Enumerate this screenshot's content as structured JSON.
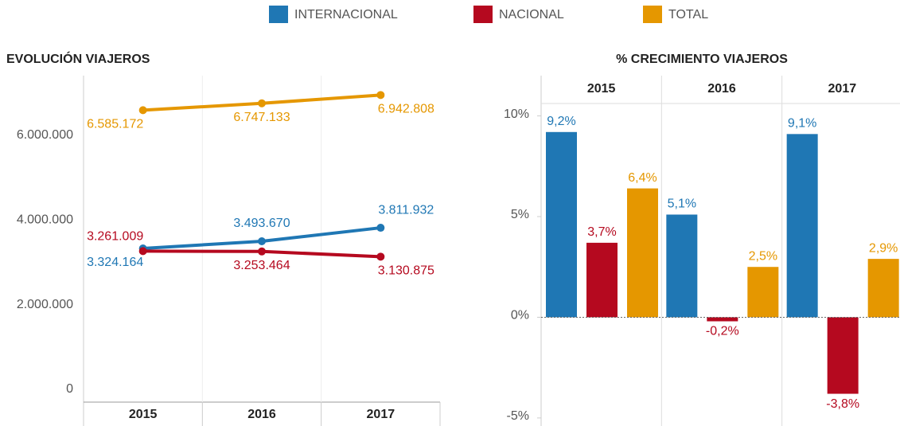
{
  "chart_data": [
    {
      "type": "line",
      "title": "EVOLUCIÓN VIAJEROS",
      "categories": [
        "2015",
        "2016",
        "2017"
      ],
      "series": [
        {
          "name": "INTERNACIONAL",
          "color": "#1f77b4",
          "values": [
            3324164,
            3493670,
            3811932
          ],
          "value_labels": [
            "3.324.164",
            "3.493.670",
            "3.811.932"
          ]
        },
        {
          "name": "NACIONAL",
          "color": "#b5091f",
          "values": [
            3261009,
            3253464,
            3130875
          ],
          "value_labels": [
            "3.261.009",
            "3.253.464",
            "3.130.875"
          ]
        },
        {
          "name": "TOTAL",
          "color": "#e59700",
          "values": [
            6585172,
            6747133,
            6942808
          ],
          "value_labels": [
            "6.585.172",
            "6.747.133",
            "6.942.808"
          ]
        }
      ],
      "ylim": [
        -300000,
        7400000
      ],
      "yticks": [
        0,
        {
          "value": 2000000,
          "label": "2.000.000"
        },
        {
          "value": 4000000,
          "label": "4.000.000"
        },
        {
          "value": 6000000,
          "label": "6.000.000"
        }
      ]
    },
    {
      "type": "bar",
      "title": "% CRECIMIENTO VIAJEROS",
      "categories": [
        "2015",
        "2016",
        "2017"
      ],
      "series": [
        {
          "color": "#1f77b4",
          "values": [
            9.2,
            5.1,
            9.1
          ],
          "value_labels": [
            "9,2%",
            "5,1%",
            "9,1%"
          ]
        },
        {
          "color": "#b5091f",
          "values": [
            3.7,
            -0.2,
            -3.8
          ],
          "value_labels": [
            "3,7%",
            "-0,2%",
            "-3,8%"
          ]
        },
        {
          "color": "#e59700",
          "values": [
            6.4,
            2.5,
            2.9
          ],
          "value_labels": [
            "6,4%",
            "2,5%",
            "2,9%"
          ]
        }
      ],
      "ylim": [
        -5.4,
        12
      ],
      "yticks": [
        {
          "value": -5,
          "label": "-5%"
        },
        {
          "value": 0,
          "label": "0%"
        },
        {
          "value": 5,
          "label": "5%"
        },
        {
          "value": 10,
          "label": "10%"
        }
      ]
    }
  ]
}
